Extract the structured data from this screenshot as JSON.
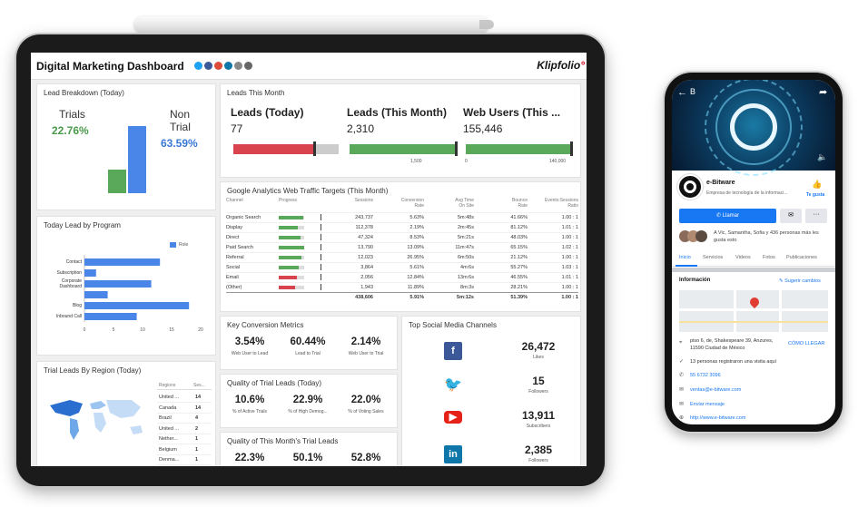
{
  "dashboard": {
    "title": "Digital Marketing Dashboard",
    "brand": "Klipfolio",
    "brand_dot": "°"
  },
  "lead_breakdown": {
    "title": "Lead Breakdown (Today)",
    "trials_label": "Trials",
    "trials_value": "22.76%",
    "nontrial_label_1": "Non",
    "nontrial_label_2": "Trial",
    "nontrial_value": "63.59%",
    "chart": {
      "type": "bar",
      "categories": [
        "Trials",
        "Non Trial"
      ],
      "values": [
        22.76,
        63.59
      ]
    }
  },
  "leads_this_month": {
    "title": "Leads This Month",
    "metrics": [
      {
        "label": "Leads (Today)",
        "value": "77"
      },
      {
        "label": "Leads (This Month)",
        "value": "2,310",
        "target_label": "1,500"
      },
      {
        "label": "Web Users (This ...",
        "value": "155,446",
        "min_label": "0",
        "target_label": "140,000"
      }
    ]
  },
  "lead_by_program": {
    "title": "Today Lead by Program",
    "legend": "Role",
    "chart_data": {
      "type": "bar",
      "categories": [
        "Contact",
        "Subscription",
        "Corporate Dashboard",
        "",
        "Blog",
        "Inbound Call"
      ],
      "category_labels": [
        [
          "Contact"
        ],
        [
          "Subscription"
        ],
        [
          "Corporate",
          "Dashboard"
        ],
        [
          ""
        ],
        [
          "Blog"
        ],
        [
          "Inbound Call"
        ]
      ],
      "values": [
        13,
        2,
        11.5,
        4,
        18,
        9
      ],
      "xticks": [
        "0",
        "5",
        "10",
        "15",
        "20"
      ],
      "xlim": [
        0,
        20
      ]
    }
  },
  "ga_traffic": {
    "title": "Google Analytics Web Traffic Targets (This Month)",
    "headers": [
      "Channel",
      "Progress",
      "Sessions",
      "Conversion Rate",
      "Avg Time On Site",
      "Bounce Rate",
      "Events:Sessions Ratio"
    ],
    "rows": [
      {
        "channel": "Organic Search",
        "progress": 0.95,
        "color": "#5aa95a",
        "sessions": "243,737",
        "conv": "5.63%",
        "time": "5m:48s",
        "bounce": "41.66%",
        "ratio": "1.00 : 1"
      },
      {
        "channel": "Display",
        "progress": 0.75,
        "color": "#5aa95a",
        "sessions": "112,378",
        "conv": "2.19%",
        "time": "2m:45s",
        "bounce": "81.12%",
        "ratio": "1.01 : 1"
      },
      {
        "channel": "Direct",
        "progress": 0.85,
        "color": "#5aa95a",
        "sessions": "47,324",
        "conv": "8.53%",
        "time": "5m:21s",
        "bounce": "48.03%",
        "ratio": "1.00 : 1"
      },
      {
        "channel": "Paid Search",
        "progress": 1.0,
        "color": "#5aa95a",
        "sessions": "13,790",
        "conv": "13.09%",
        "time": "11m:47s",
        "bounce": "65.15%",
        "ratio": "1.02 : 1"
      },
      {
        "channel": "Referral",
        "progress": 0.88,
        "color": "#5aa95a",
        "sessions": "12,023",
        "conv": "26.95%",
        "time": "6m:50s",
        "bounce": "21.12%",
        "ratio": "1.00 : 1"
      },
      {
        "channel": "Social",
        "progress": 0.8,
        "color": "#5aa95a",
        "sessions": "3,864",
        "conv": "5.61%",
        "time": "4m:6s",
        "bounce": "55.27%",
        "ratio": "1.03 : 1"
      },
      {
        "channel": "Email",
        "progress": 0.7,
        "color": "#d9434e",
        "sessions": "2,056",
        "conv": "12.84%",
        "time": "13m:6s",
        "bounce": "46.55%",
        "ratio": "1.01 : 1"
      },
      {
        "channel": "(Other)",
        "progress": 0.65,
        "color": "#d9434e",
        "sessions": "1,943",
        "conv": "11.89%",
        "time": "8m:3s",
        "bounce": "28.21%",
        "ratio": "1.00 : 1"
      }
    ],
    "totals": {
      "sessions": "438,606",
      "conv": "5.91%",
      "time": "5m:12s",
      "bounce": "51.39%",
      "ratio": "1.00 : 1"
    }
  },
  "region": {
    "title": "Trial Leads By Region (Today)",
    "headers": [
      "Regions",
      "Ses..."
    ],
    "rows": [
      {
        "region": "United ...",
        "value": "14"
      },
      {
        "region": "Canada",
        "value": "14"
      },
      {
        "region": "Brazil",
        "value": "4"
      },
      {
        "region": "United ...",
        "value": "2"
      },
      {
        "region": "Nether...",
        "value": "1"
      },
      {
        "region": "Belgium",
        "value": "1"
      },
      {
        "region": "Denma...",
        "value": "1"
      }
    ]
  },
  "conversion": {
    "title": "Key Conversion Metrics",
    "items": [
      {
        "value": "3.54%",
        "label": "Web User to Lead"
      },
      {
        "value": "60.44%",
        "label": "Lead to Trial"
      },
      {
        "value": "2.14%",
        "label": "Web User to Trial"
      }
    ]
  },
  "quality_today": {
    "title": "Quality of Trial Leads (Today)",
    "items": [
      {
        "value": "10.6%",
        "label": "% of Active Trials"
      },
      {
        "value": "22.9%",
        "label": "% of High Demog..."
      },
      {
        "value": "22.0%",
        "label": "% of Voting Sales"
      }
    ]
  },
  "quality_month": {
    "title": "Quality of This Month's Trial Leads",
    "items": [
      {
        "value": "22.3%"
      },
      {
        "value": "50.1%"
      },
      {
        "value": "52.8%"
      }
    ]
  },
  "social": {
    "title": "Top Social Media Channels",
    "items": [
      {
        "network": "facebook-icon",
        "color": "#3b5998",
        "value": "26,472",
        "label": "Likes"
      },
      {
        "network": "twitter-icon",
        "color": "#1da1f2",
        "value": "15",
        "label": "Followers"
      },
      {
        "network": "youtube-icon",
        "color": "#e62117",
        "value": "13,911",
        "label": "Subscribers"
      },
      {
        "network": "linkedin-icon",
        "color": "#0e76a8",
        "value": "2,385",
        "label": "Followers"
      }
    ]
  },
  "phone": {
    "search_stub": "B",
    "page_name": "e-Bitware",
    "page_desc": "Empresa de tecnología de la informaci...",
    "like_label": "Te gusta",
    "call_label": "Llamar",
    "friends_text": "A Vic, Samantha, Sofia y 436 personas más les gusta esto",
    "tabs": [
      "Inicio",
      "Servicios",
      "Videos",
      "Fotos",
      "Publicaciones"
    ],
    "info_title": "Información",
    "suggest_label": "Sugerir cambios",
    "address": "piso 6, de, Shakespeare 39, Anzures, 11590 Ciudad de México",
    "directions": "CÓMO LLEGAR",
    "visits": "13 personas registraron una visita aquí",
    "phone_number": "55 6732 3096",
    "email": "ventas@e-bitware.com",
    "message": "Enviar mensaje",
    "website": "http://www.e-bitware.com"
  }
}
